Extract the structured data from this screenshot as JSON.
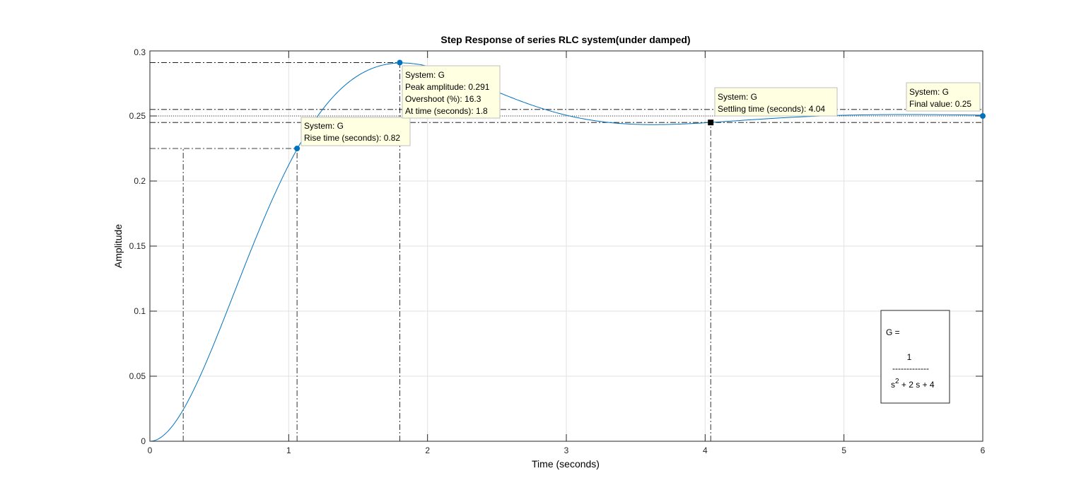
{
  "chart_data": {
    "type": "line",
    "title": "Step Response of series RLC system(under damped)",
    "xlabel": "Time (seconds)",
    "ylabel": "Amplitude",
    "xlim": [
      0,
      6
    ],
    "ylim": [
      0,
      0.3
    ],
    "xticks": [
      "0",
      "1",
      "2",
      "3",
      "4",
      "5",
      "6"
    ],
    "yticks": [
      "0",
      "0.05",
      "0.1",
      "0.15",
      "0.2",
      "0.25",
      "0.3"
    ],
    "grid": true,
    "series": [
      {
        "name": "G",
        "color": "#0072BD",
        "model": {
          "numerator": [
            1
          ],
          "denominator": [
            1,
            2,
            4
          ]
        }
      }
    ],
    "characteristics": {
      "rise_time": {
        "system": "System: G",
        "label": "Rise time (seconds): 0.82",
        "start": 0.24,
        "end": 1.06,
        "value_low": 0.025,
        "value_high": 0.225
      },
      "peak": {
        "system": "System: G",
        "label_amplitude": "Peak amplitude: 0.291",
        "label_overshoot": "Overshoot (%): 16.3",
        "label_time": "At time (seconds): 1.8",
        "time": 1.8,
        "value": 0.291
      },
      "settling": {
        "system": "System: G",
        "label": "Settling time (seconds): 4.04",
        "time": 4.04,
        "value": 0.245,
        "band_low": 0.245,
        "band_high": 0.255
      },
      "final": {
        "system": "System: G",
        "label": "Final value: 0.25",
        "time": 6,
        "value": 0.25
      }
    },
    "transfer_function": {
      "lhs": "G =",
      "numerator": "1",
      "divider": "-------------",
      "den_s": "s",
      "den_exp": "2",
      "den_rest": " + 2 s + 4"
    }
  }
}
